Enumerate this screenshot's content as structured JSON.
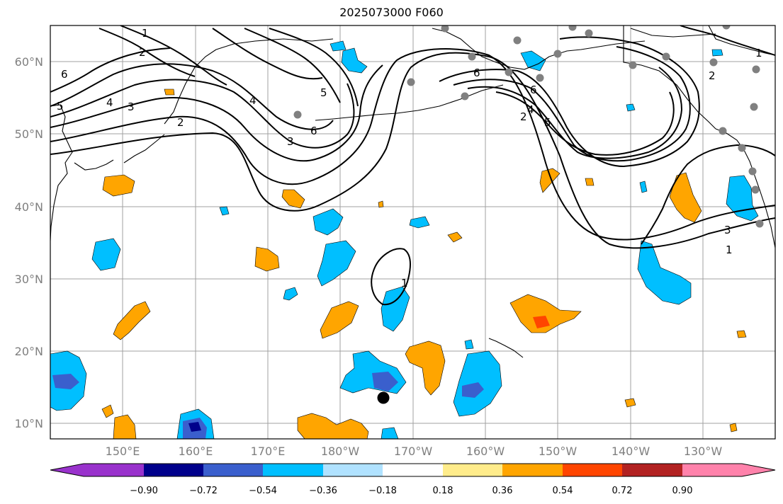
{
  "title": "2025073000 F060",
  "map": {
    "lat_labels": [
      "60°N",
      "50°N",
      "40°N",
      "30°N",
      "20°N",
      "10°N"
    ],
    "lon_labels": [
      "150°E",
      "160°E",
      "170°E",
      "180°W",
      "170°W",
      "160°W",
      "150°W",
      "140°W",
      "130°W"
    ],
    "contour_labels": [
      "1",
      "2",
      "3",
      "4",
      "5",
      "6"
    ],
    "shading_levels": [
      -0.9,
      -0.72,
      -0.54,
      -0.36,
      -0.18,
      0.18,
      0.36,
      0.54,
      0.72,
      0.9
    ],
    "shading_colors": [
      "#9932cc",
      "#00008b",
      "#3a5fcd",
      "#00bfff",
      "#b0e2ff",
      "#ffffff",
      "#ffec8b",
      "#ffa500",
      "#ff4500",
      "#b22222",
      "#ff82ab"
    ],
    "station_color": "#808080",
    "storm_marker_color": "#000000"
  },
  "colorbar": {
    "tick_labels": [
      "−0.90",
      "−0.72",
      "−0.54",
      "−0.36",
      "−0.18",
      "0.18",
      "0.36",
      "0.54",
      "0.72",
      "0.90"
    ]
  }
}
